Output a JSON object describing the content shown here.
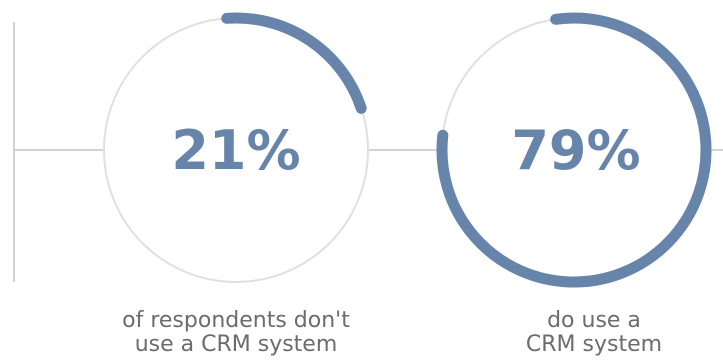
{
  "colors": {
    "accent": "#6784aa",
    "track": "#e0e0e0",
    "connector": "#d3d3d3",
    "caption": "#6c6c6c"
  },
  "chart_data": [
    {
      "type": "donut",
      "value": 21,
      "label": "21%",
      "caption_lines": [
        "of respondents don't",
        "use a CRM system"
      ]
    },
    {
      "type": "donut",
      "value": 79,
      "label": "79%",
      "caption_lines": [
        "do use a",
        "CRM system"
      ]
    }
  ]
}
